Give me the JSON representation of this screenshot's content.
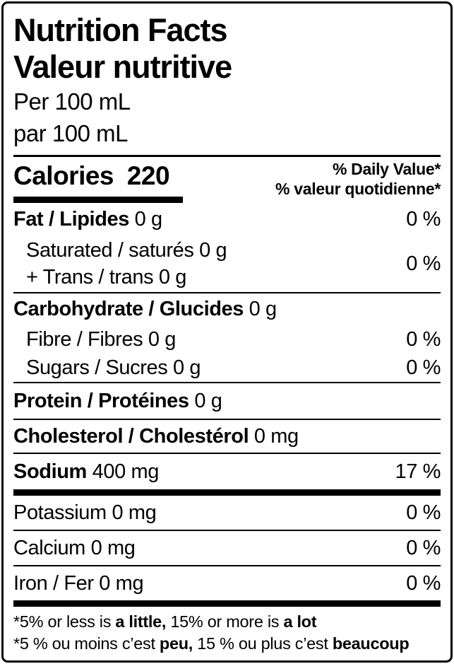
{
  "label": {
    "title_en": "Nutrition Facts",
    "title_fr": "Valeur nutritive",
    "serving_en": "Per 100 mL",
    "serving_fr": "par 100 mL",
    "calories": {
      "label": "Calories",
      "value": "220"
    },
    "daily_value_header_en": "% Daily Value*",
    "daily_value_header_fr": "% valeur quotidienne*",
    "rows": {
      "fat": {
        "name": "Fat / Lipides",
        "amount": "0 g",
        "dv": "0 %"
      },
      "saturated": {
        "line1": "Saturated / saturés 0 g",
        "line2": "+ Trans / trans 0 g",
        "dv": "0 %"
      },
      "carbohydrate": {
        "name": "Carbohydrate / Glucides",
        "amount": "0 g"
      },
      "fibre": {
        "name": "Fibre / Fibres 0 g",
        "dv": "0 %"
      },
      "sugars": {
        "name": "Sugars / Sucres 0 g",
        "dv": "0 %"
      },
      "protein": {
        "name": "Protein / Protéines",
        "amount": "0 g"
      },
      "cholesterol": {
        "name": "Cholesterol / Cholestérol",
        "amount": "0 mg"
      },
      "sodium": {
        "name": "Sodium",
        "amount": "400 mg",
        "dv": "17 %"
      },
      "potassium": {
        "name": "Potassium 0 mg",
        "dv": "0 %"
      },
      "calcium": {
        "name": "Calcium 0 mg",
        "dv": "0 %"
      },
      "iron": {
        "name": "Iron / Fer 0 mg",
        "dv": "0 %"
      }
    },
    "footnote_en": {
      "pre": "*5% or less is",
      "bold1": "a little,",
      "mid": "15% or more is",
      "bold2": "a lot"
    },
    "footnote_fr": {
      "pre": "*5 % ou moins c’est",
      "bold1": "peu,",
      "mid": "15 % ou plus c’est",
      "bold2": "beaucoup"
    }
  }
}
